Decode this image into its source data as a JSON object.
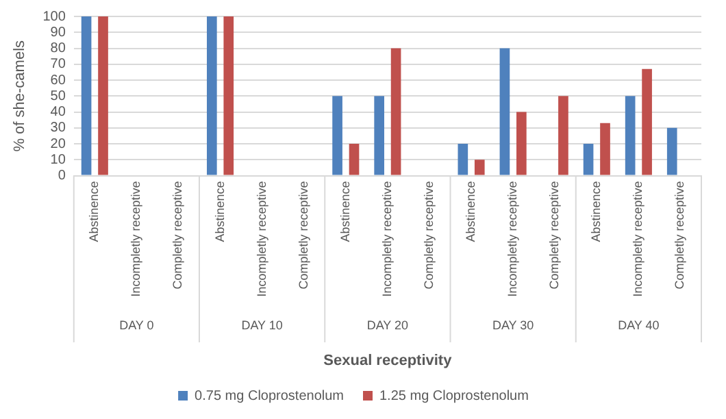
{
  "chart_data": {
    "type": "bar",
    "xlabel": "Sexual receptivity",
    "ylabel": "% of she-camels",
    "categories": [
      "Abstinence",
      "Incompletly receptive",
      "Completly receptive",
      "Abstinence",
      "Incompletly receptive",
      "Completly receptive",
      "Abstinence",
      "Incompletly receptive",
      "Completly receptive",
      "Abstinence",
      "Incompletly receptive",
      "Completly receptive",
      "Abstinence",
      "Incompletly receptive",
      "Completly receptive"
    ],
    "series": [
      {
        "name": "0.75 mg Cloprostenolum",
        "color": "#4f81bd",
        "values": [
          100,
          0,
          0,
          100,
          0,
          0,
          50,
          50,
          0,
          20,
          80,
          0,
          20,
          50,
          30
        ]
      },
      {
        "name": "1.25 mg Cloprostenolum",
        "color": "#c0504d",
        "values": [
          100,
          0,
          0,
          100,
          0,
          0,
          20,
          80,
          0,
          10,
          40,
          50,
          33,
          67,
          0
        ]
      }
    ],
    "ylim": [
      0,
      100
    ],
    "yticks": [
      0,
      10,
      20,
      30,
      40,
      50,
      60,
      70,
      80,
      90,
      100
    ],
    "grid": "y",
    "legend": "bottom",
    "annotations": [
      "DAY 0",
      "DAY 10",
      "DAY 20",
      "DAY 30",
      "DAY 40"
    ]
  }
}
